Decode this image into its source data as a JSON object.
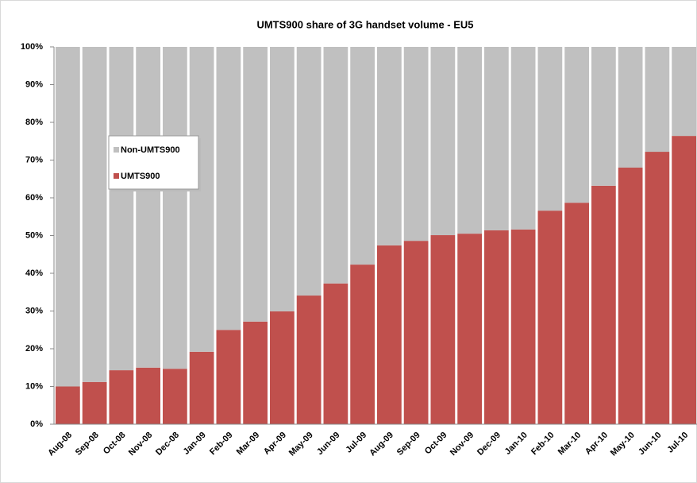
{
  "chart_data": {
    "type": "stacked_bar",
    "title": "UMTS900 share of 3G handset volume - EU5",
    "categories": [
      "Aug-08",
      "Sep-08",
      "Oct-08",
      "Nov-08",
      "Dec-08",
      "Jan-09",
      "Feb-09",
      "Mar-09",
      "Apr-09",
      "May-09",
      "Jun-09",
      "Jul-09",
      "Aug-09",
      "Sep-09",
      "Oct-09",
      "Nov-09",
      "Dec-09",
      "Jan-10",
      "Feb-10",
      "Mar-10",
      "Apr-10",
      "May-10",
      "Jun-10",
      "Jul-10"
    ],
    "series": [
      {
        "name": "UMTS900",
        "color": "#c0504d",
        "values": [
          10,
          11.2,
          14.3,
          15,
          14.7,
          19.2,
          25,
          27.2,
          29.9,
          34.1,
          37.3,
          42.3,
          47.4,
          48.6,
          50.1,
          50.5,
          51.4,
          51.6,
          56.6,
          58.7,
          63.2,
          68,
          72.2,
          76.4
        ]
      },
      {
        "name": "Non-UMTS900",
        "color": "#c0c0c0",
        "values": [
          90,
          88.8,
          85.7,
          85,
          85.3,
          80.8,
          75,
          72.8,
          70.1,
          65.9,
          62.7,
          57.7,
          52.6,
          51.4,
          49.9,
          49.5,
          48.6,
          48.4,
          43.4,
          41.3,
          36.8,
          32,
          27.8,
          23.6
        ]
      }
    ],
    "ylim": [
      0,
      100
    ],
    "yticks": [
      {
        "value": 0,
        "label": "0%"
      },
      {
        "value": 10,
        "label": "10%"
      },
      {
        "value": 20,
        "label": "20%"
      },
      {
        "value": 30,
        "label": "30%"
      },
      {
        "value": 40,
        "label": "40%"
      },
      {
        "value": 50,
        "label": "50%"
      },
      {
        "value": 60,
        "label": "60%"
      },
      {
        "value": 70,
        "label": "70%"
      },
      {
        "value": 80,
        "label": "80%"
      },
      {
        "value": 90,
        "label": "90%"
      },
      {
        "value": 100,
        "label": "100%"
      }
    ],
    "legend_position": "upper left"
  }
}
